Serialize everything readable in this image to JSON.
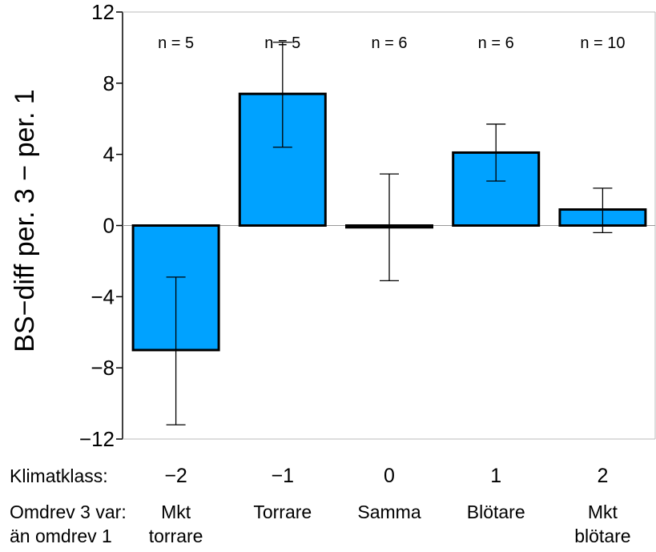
{
  "chart_data": {
    "type": "bar",
    "ylabel": "BS−diff  per. 3  −  per. 1",
    "ylim": [
      -12,
      12
    ],
    "yticks": [
      12,
      8,
      4,
      0,
      -4,
      -8,
      -12
    ],
    "ytick_labels": [
      "12",
      "8",
      "4",
      "0",
      "−4",
      "−8",
      "−12"
    ],
    "categories": [
      "−2",
      "−1",
      "0",
      "1",
      "2"
    ],
    "category_descriptions": [
      [
        "Mkt",
        "torrare"
      ],
      [
        "Torrare"
      ],
      [
        "Samma"
      ],
      [
        "Blötare"
      ],
      [
        "Mkt",
        "blötare"
      ]
    ],
    "values": [
      -7.0,
      7.4,
      -0.1,
      4.1,
      0.9
    ],
    "error_low": [
      -11.2,
      4.4,
      -3.1,
      2.5,
      -0.4
    ],
    "error_high": [
      -2.9,
      10.3,
      2.9,
      5.7,
      2.1
    ],
    "n_labels": [
      "n = 5",
      "n = 5",
      "n = 6",
      "n = 6",
      "n = 10"
    ],
    "row1_label": "Klimatklass:",
    "row2_label": [
      "Omdrev 3 var:",
      "än omdrev 1"
    ],
    "bar_color": "#00a2ff",
    "grid": false,
    "zero_line": true
  }
}
